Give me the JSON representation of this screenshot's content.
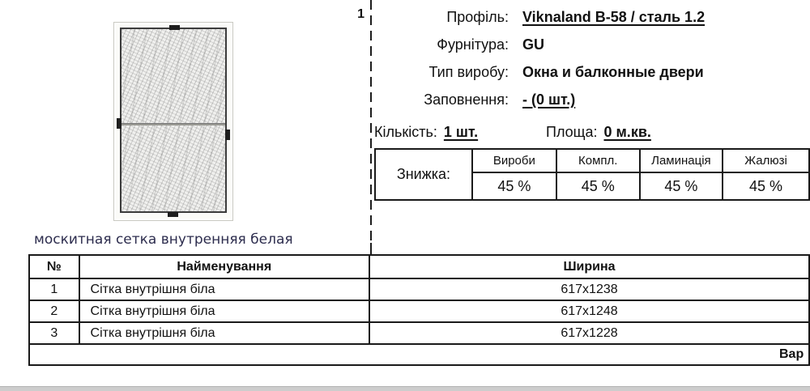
{
  "item_number": "1",
  "specs": {
    "rows": [
      {
        "label": "Профіль:",
        "value": "Viknaland B-58 / сталь 1.2"
      },
      {
        "label": "Фурнітура:",
        "value": "GU"
      },
      {
        "label": "Тип виробу:",
        "value": "Окна и балконные двери"
      },
      {
        "label": "Заповнення:",
        "value": "- (0 шт.)"
      }
    ],
    "quantity_label": "Кількість:",
    "quantity_value": "1 шт.",
    "area_label": "Площа:",
    "area_value": "0 м.кв."
  },
  "discounts": {
    "label": "Знижка:",
    "columns": [
      {
        "name": "Вироби",
        "value": "45 %"
      },
      {
        "name": "Компл.",
        "value": "45 %"
      },
      {
        "name": "Ламинація",
        "value": "45 %"
      },
      {
        "name": "Жалюзі",
        "value": "45 %"
      }
    ]
  },
  "section_title": "москитная сетка внутренняя белая",
  "items_table": {
    "headers": [
      "№",
      "Найменування",
      "Ширина"
    ],
    "rows": [
      [
        "1",
        "Сітка внутрішня біла",
        "617x1238"
      ],
      [
        "2",
        "Сітка внутрішня біла",
        "617x1248"
      ],
      [
        "3",
        "Сітка внутрішня біла",
        "617x1228"
      ]
    ],
    "footer_text": "Вар"
  },
  "colors": {
    "title_text": "#2d2d4e",
    "table_border": "#1a1a1a",
    "bottom_bar": "#cdcdcd"
  }
}
